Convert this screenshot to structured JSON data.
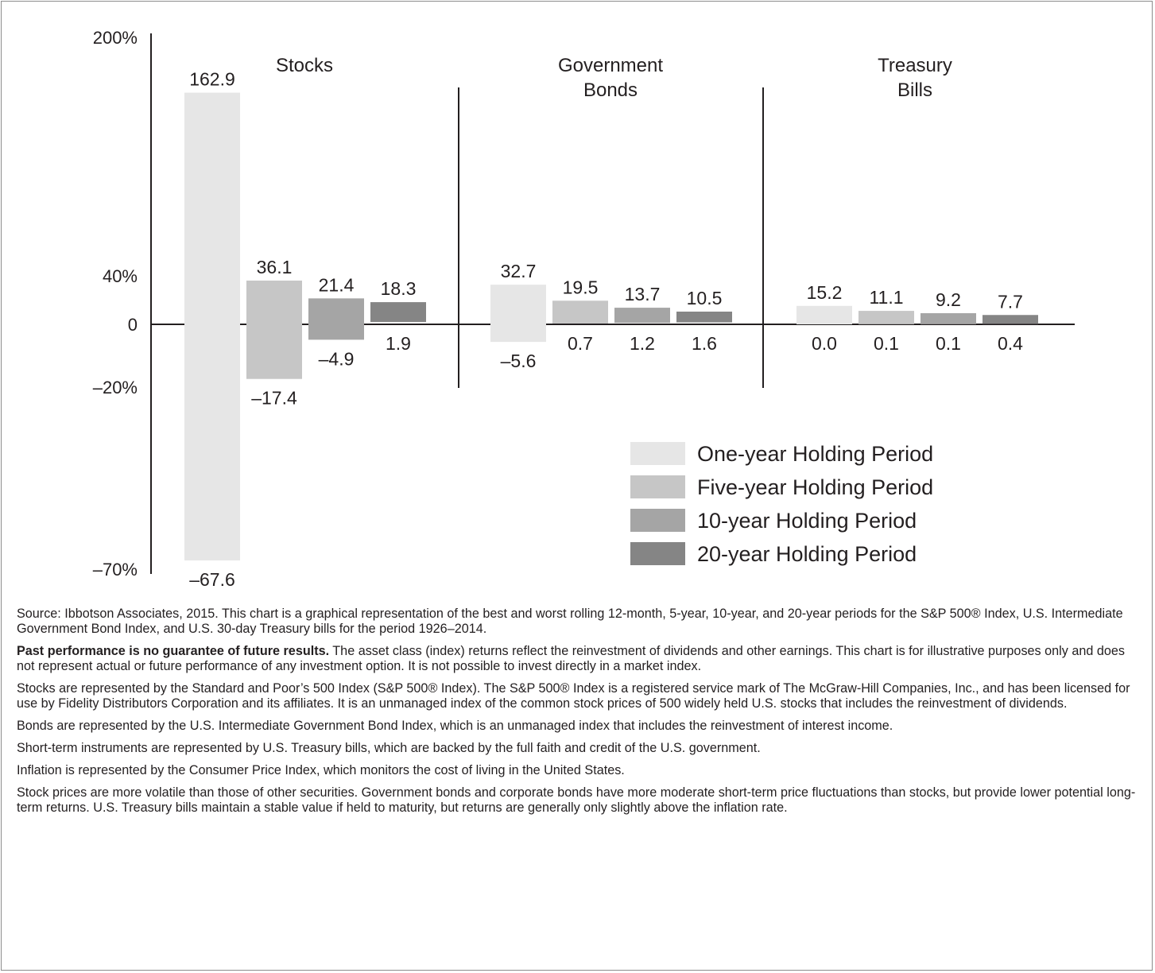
{
  "chart_data": {
    "type": "bar",
    "categories": [
      "Stocks",
      "Government Bonds",
      "Treasury Bills"
    ],
    "category_titles": [
      [
        "Stocks"
      ],
      [
        "Government",
        "Bonds"
      ],
      [
        "Treasury",
        "Bills"
      ]
    ],
    "series": [
      {
        "name": "One-year Holding Period",
        "color": "#e6e6e6",
        "best": [
          162.9,
          32.7,
          15.2
        ],
        "worst": [
          -67.6,
          -5.6,
          0.0
        ],
        "best_labels": [
          "162.9",
          "32.7",
          "15.2"
        ],
        "worst_labels": [
          "–67.6",
          "–5.6",
          "0.0"
        ]
      },
      {
        "name": "Five-year Holding Period",
        "color": "#c6c6c6",
        "best": [
          36.1,
          19.5,
          11.1
        ],
        "worst": [
          -17.4,
          0.7,
          0.1
        ],
        "best_labels": [
          "36.1",
          "19.5",
          "11.1"
        ],
        "worst_labels": [
          "–17.4",
          "0.7",
          "0.1"
        ]
      },
      {
        "name": "10-year Holding Period",
        "color": "#a5a5a5",
        "best": [
          21.4,
          13.7,
          9.2
        ],
        "worst": [
          -4.9,
          1.2,
          0.1
        ],
        "best_labels": [
          "21.4",
          "13.7",
          "9.2"
        ],
        "worst_labels": [
          "–4.9",
          "1.2",
          "0.1"
        ]
      },
      {
        "name": "20-year Holding Period",
        "color": "#858585",
        "best": [
          18.3,
          10.5,
          7.7
        ],
        "worst": [
          1.9,
          1.6,
          0.4
        ],
        "best_labels": [
          "18.3",
          "10.5",
          "7.7"
        ],
        "worst_labels": [
          "1.9",
          "1.6",
          "0.4"
        ]
      }
    ],
    "y_ticks": [
      {
        "value": 200,
        "label": "200%"
      },
      {
        "value": 40,
        "label": "40%"
      },
      {
        "value": 0,
        "label": "0"
      },
      {
        "value": -20,
        "label": "–20%"
      },
      {
        "value": -70,
        "label": "–70%"
      }
    ],
    "y_scale": "piecewise (non-linear)",
    "ylim": [
      -70,
      200
    ],
    "legend_position": "lower-right",
    "grid": false
  },
  "notes": {
    "source": "Source: Ibbotson Associates, 2015. This chart is a graphical representation of the best and worst rolling 12-month, 5-year, 10-year, and 20-year periods for the S&P 500® Index, U.S. Intermediate Government Bond Index, and U.S. 30-day Treasury bills for the period 1926–2014.",
    "past_performance_bold": "Past performance is no guarantee of future results.",
    "past_performance_rest": " The asset class (index) returns reflect the reinvestment of dividends and other earnings. This chart is for illustrative purposes only and does not represent actual or future performance of any investment option. It is not possible to invest directly in a market index.",
    "stocks": "Stocks are represented by the Standard and Poor’s 500 Index (S&P 500® Index). The S&P 500® Index is a registered service mark of The McGraw-Hill Companies, Inc., and has been licensed for use by Fidelity Distributors Corporation and its affiliates. It is an unmanaged index of the common stock prices of 500 widely held U.S. stocks that includes the reinvestment of dividends.",
    "bonds": "Bonds are represented by the U.S. Intermediate Government Bond Index, which is an unmanaged index that includes the reinvestment of interest income.",
    "short_term": "Short-term instruments are represented by U.S. Treasury bills, which are backed by the full faith and credit of the U.S. government.",
    "inflation": "Inflation is represented by the Consumer Price Index, which monitors the cost of living in the United States.",
    "volatility": "Stock prices are more volatile than those of other securities. Government bonds and corporate bonds have more moderate short-term price fluctuations than stocks, but provide lower potential long-term returns. U.S. Treasury bills maintain a stable value if held to maturity, but returns are generally only slightly above the inflation rate."
  }
}
